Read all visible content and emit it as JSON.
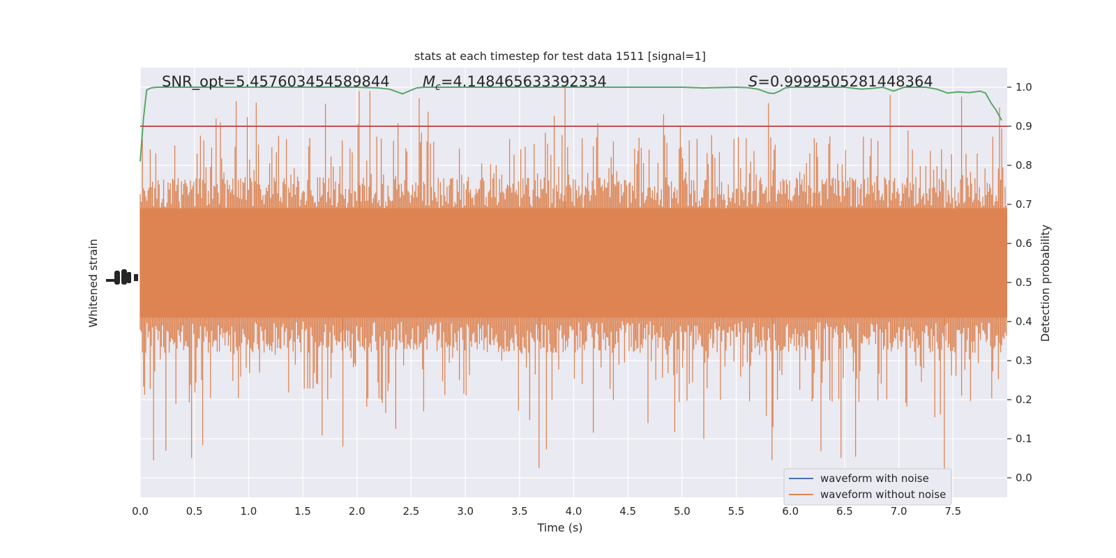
{
  "chart_data": {
    "type": "line",
    "title": "stats at each timestep for test data 1511 [signal=1]",
    "xlabel": "Time (s)",
    "ylabel_left": "Whitened strain",
    "ylabel_right": "Detection probability",
    "xlim": [
      0.0,
      8.0
    ],
    "ylim_right": [
      -0.05,
      1.05
    ],
    "x_ticks": [
      "0.0",
      "0.5",
      "1.0",
      "1.5",
      "2.0",
      "2.5",
      "3.0",
      "3.5",
      "4.0",
      "4.5",
      "5.0",
      "5.5",
      "6.0",
      "6.5",
      "7.0",
      "7.5"
    ],
    "y_ticks_right": [
      "0.0",
      "0.1",
      "0.2",
      "0.3",
      "0.4",
      "0.5",
      "0.6",
      "0.7",
      "0.8",
      "0.9",
      "1.0"
    ],
    "annotations": {
      "snr": "SNR_opt=5.457603454589844",
      "mc_symbol": "M",
      "mc_sub": "c",
      "mc_value": "=4.148465633392334",
      "s_symbol": "S",
      "s_value": "=0.9999505281448364"
    },
    "legend": {
      "placement": "lower right",
      "entries": [
        {
          "label": "waveform with noise",
          "color": "#4c72b0"
        },
        {
          "label": "waveform without noise",
          "color": "#dd8452"
        }
      ]
    },
    "series": [
      {
        "name": "waveform with noise",
        "color": "#4c72b0",
        "x": [],
        "y": []
      },
      {
        "name": "waveform without noise",
        "color": "#dd8452",
        "x": [
          0.0,
          0.05,
          0.1,
          0.2,
          0.5,
          1.0,
          1.5,
          2.0,
          2.5,
          3.0,
          3.5,
          4.0,
          4.5,
          5.0,
          5.5,
          6.0,
          6.5,
          7.0,
          7.5,
          7.9,
          8.0
        ],
        "y": [
          0.5,
          0.5,
          0.5,
          0.5,
          0.5,
          0.5,
          0.5,
          0.5,
          0.5,
          0.5,
          0.5,
          0.5,
          0.5,
          0.5,
          0.5,
          0.5,
          0.5,
          0.5,
          0.5,
          0.5,
          0.5
        ]
      },
      {
        "name": "",
        "color": "#55a868",
        "x": [
          0.0,
          0.03,
          0.06,
          0.1,
          0.15,
          0.3,
          0.5,
          1.0,
          1.5,
          2.0,
          2.2,
          2.3,
          2.35,
          2.42,
          2.48,
          2.55,
          2.62,
          3.0,
          3.5,
          4.0,
          4.5,
          5.0,
          5.2,
          5.5,
          5.6,
          5.7,
          5.8,
          5.85,
          5.9,
          5.95,
          6.0,
          6.1,
          6.3,
          6.5,
          6.65,
          6.75,
          6.85,
          6.95,
          7.05,
          7.25,
          7.35,
          7.45,
          7.55,
          7.65,
          7.75,
          7.8,
          7.85,
          7.9,
          7.95
        ],
        "y": [
          0.81,
          0.92,
          0.993,
          0.998,
          1.0,
          1.0,
          1.0,
          1.0,
          1.0,
          1.0,
          0.998,
          0.995,
          0.99,
          0.983,
          0.99,
          0.998,
          1.0,
          1.0,
          1.0,
          1.0,
          1.0,
          1.0,
          0.998,
          1.0,
          0.999,
          0.995,
          0.985,
          0.984,
          0.99,
          0.998,
          1.0,
          1.0,
          1.0,
          1.0,
          0.995,
          0.997,
          1.0,
          0.99,
          1.0,
          1.0,
          0.995,
          0.985,
          0.988,
          0.986,
          0.99,
          0.985,
          0.96,
          0.94,
          0.915
        ]
      },
      {
        "name": "",
        "color": "#c44e52",
        "x": [
          0.0,
          8.0
        ],
        "y": [
          0.9,
          0.9
        ]
      }
    ],
    "noise_band": {
      "center": 0.5,
      "band_lo": 0.41,
      "band_hi": 0.69,
      "spike_max": 1.0,
      "spike_min": 0.005
    }
  }
}
